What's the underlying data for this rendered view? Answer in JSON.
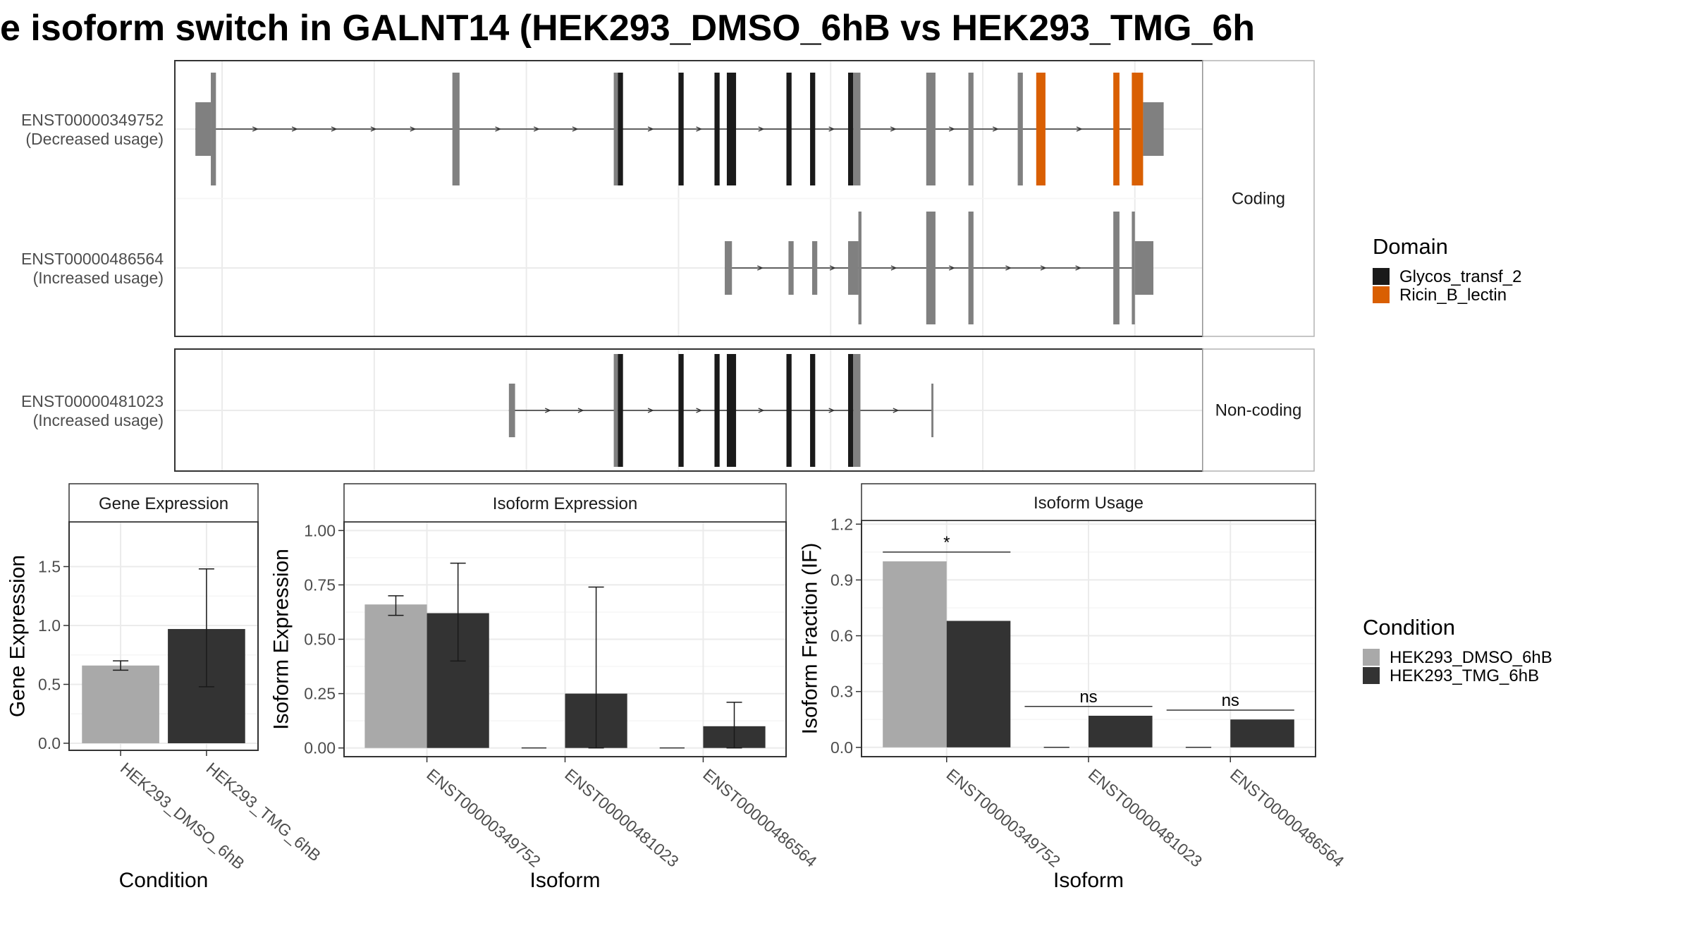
{
  "title": "e isoform switch in GALNT14 (HEK293_DMSO_6hB vs HEK293_TMG_6h",
  "colors": {
    "exon_default": "#808080",
    "glycos": "#1a1a1a",
    "ricin": "#d95f02",
    "dmso": "#a9a9a9",
    "tmg": "#333333",
    "panel_border": "#333333",
    "strip_border": "#b3b3b3",
    "grid_major": "#ebebeb",
    "grid_minor": "#f5f5f5"
  },
  "structure": {
    "facets": [
      {
        "label": "Coding",
        "isoforms": [
          {
            "id": "ENST00000349752",
            "usage": "(Decreased usage)",
            "span": [
              0.02,
              0.93
            ],
            "exons": [
              {
                "s": 0.02,
                "e": 0.035,
                "c": false,
                "d": null
              },
              {
                "s": 0.035,
                "e": 0.04,
                "c": true,
                "d": null
              },
              {
                "s": 0.27,
                "e": 0.277,
                "c": true,
                "d": null
              },
              {
                "s": 0.427,
                "e": 0.431,
                "c": true,
                "d": null
              },
              {
                "s": 0.431,
                "e": 0.436,
                "c": true,
                "d": "glycos"
              },
              {
                "s": 0.49,
                "e": 0.495,
                "c": true,
                "d": "glycos"
              },
              {
                "s": 0.525,
                "e": 0.53,
                "c": true,
                "d": "glycos"
              },
              {
                "s": 0.537,
                "e": 0.546,
                "c": true,
                "d": "glycos"
              },
              {
                "s": 0.595,
                "e": 0.6,
                "c": true,
                "d": "glycos"
              },
              {
                "s": 0.618,
                "e": 0.623,
                "c": true,
                "d": "glycos"
              },
              {
                "s": 0.655,
                "e": 0.66,
                "c": true,
                "d": "glycos"
              },
              {
                "s": 0.66,
                "e": 0.667,
                "c": true,
                "d": null
              },
              {
                "s": 0.731,
                "e": 0.74,
                "c": true,
                "d": null
              },
              {
                "s": 0.772,
                "e": 0.777,
                "c": true,
                "d": null
              },
              {
                "s": 0.82,
                "e": 0.825,
                "c": true,
                "d": null
              },
              {
                "s": 0.838,
                "e": 0.847,
                "c": true,
                "d": "ricin"
              },
              {
                "s": 0.913,
                "e": 0.919,
                "c": true,
                "d": "ricin"
              },
              {
                "s": 0.931,
                "e": 0.942,
                "c": true,
                "d": "ricin"
              },
              {
                "s": 0.942,
                "e": 0.962,
                "c": false,
                "d": null
              }
            ]
          },
          {
            "id": "ENST00000486564",
            "usage": "(Increased usage)",
            "span": [
              0.535,
              0.933
            ],
            "exons": [
              {
                "s": 0.535,
                "e": 0.542,
                "c": false,
                "d": null
              },
              {
                "s": 0.597,
                "e": 0.602,
                "c": false,
                "d": null
              },
              {
                "s": 0.62,
                "e": 0.625,
                "c": false,
                "d": null
              },
              {
                "s": 0.655,
                "e": 0.665,
                "c": false,
                "d": null
              },
              {
                "s": 0.665,
                "e": 0.668,
                "c": true,
                "d": null
              },
              {
                "s": 0.731,
                "e": 0.74,
                "c": true,
                "d": null
              },
              {
                "s": 0.772,
                "e": 0.777,
                "c": true,
                "d": null
              },
              {
                "s": 0.913,
                "e": 0.919,
                "c": true,
                "d": null
              },
              {
                "s": 0.931,
                "e": 0.934,
                "c": true,
                "d": null
              },
              {
                "s": 0.934,
                "e": 0.952,
                "c": false,
                "d": null
              }
            ]
          }
        ]
      },
      {
        "label": "Non-coding",
        "isoforms": [
          {
            "id": "ENST00000481023",
            "usage": "(Increased usage)",
            "span": [
              0.325,
              0.738
            ],
            "exons": [
              {
                "s": 0.325,
                "e": 0.331,
                "c": false,
                "d": null
              },
              {
                "s": 0.427,
                "e": 0.431,
                "c": true,
                "d": null
              },
              {
                "s": 0.431,
                "e": 0.436,
                "c": true,
                "d": "glycos"
              },
              {
                "s": 0.49,
                "e": 0.495,
                "c": true,
                "d": "glycos"
              },
              {
                "s": 0.525,
                "e": 0.53,
                "c": true,
                "d": "glycos"
              },
              {
                "s": 0.537,
                "e": 0.546,
                "c": true,
                "d": "glycos"
              },
              {
                "s": 0.595,
                "e": 0.6,
                "c": true,
                "d": "glycos"
              },
              {
                "s": 0.618,
                "e": 0.623,
                "c": true,
                "d": "glycos"
              },
              {
                "s": 0.655,
                "e": 0.66,
                "c": true,
                "d": "glycos"
              },
              {
                "s": 0.66,
                "e": 0.667,
                "c": true,
                "d": null
              },
              {
                "s": 0.736,
                "e": 0.738,
                "c": false,
                "d": null
              }
            ]
          }
        ]
      }
    ]
  },
  "legends": {
    "domain": {
      "title": "Domain",
      "items": [
        {
          "key": "glycos",
          "label": "Glycos_transf_2"
        },
        {
          "key": "ricin",
          "label": "Ricin_B_lectin"
        }
      ]
    },
    "condition": {
      "title": "Condition",
      "items": [
        {
          "key": "dmso",
          "label": "HEK293_DMSO_6hB"
        },
        {
          "key": "tmg",
          "label": "HEK293_TMG_6hB"
        }
      ]
    }
  },
  "chart_data": [
    {
      "type": "bar",
      "title": "Gene Expression",
      "xlabel": "Condition",
      "ylabel": "Gene Expression",
      "ylim": [
        -0.06,
        1.88
      ],
      "yticks": [
        0.0,
        0.5,
        1.0,
        1.5
      ],
      "yticklabels": [
        "0.0",
        "0.5",
        "1.0",
        "1.5"
      ],
      "categories": [
        "HEK293_DMSO_6hB",
        "HEK293_TMG_6hB"
      ],
      "series": [
        {
          "name": "HEK293_DMSO_6hB",
          "values": [
            0.66,
            null
          ],
          "err_low": [
            0.62,
            null
          ],
          "err_high": [
            0.7,
            null
          ]
        },
        {
          "name": "HEK293_TMG_6hB",
          "values": [
            null,
            0.97
          ],
          "err_low": [
            null,
            0.48
          ],
          "err_high": [
            null,
            1.48
          ]
        }
      ]
    },
    {
      "type": "bar",
      "title": "Isoform Expression",
      "xlabel": "Isoform",
      "ylabel": "Isoform Expression",
      "ylim": [
        -0.04,
        1.04
      ],
      "yticks": [
        0.0,
        0.25,
        0.5,
        0.75,
        1.0
      ],
      "yticklabels": [
        "0.00",
        "0.25",
        "0.50",
        "0.75",
        "1.00"
      ],
      "categories": [
        "ENST00000349752",
        "ENST00000481023",
        "ENST00000486564"
      ],
      "series": [
        {
          "name": "HEK293_DMSO_6hB",
          "values": [
            0.66,
            0.0,
            0.0
          ],
          "err_low": [
            0.61,
            0.0,
            0.0
          ],
          "err_high": [
            0.7,
            0.0,
            0.0
          ]
        },
        {
          "name": "HEK293_TMG_6hB",
          "values": [
            0.62,
            0.25,
            0.1
          ],
          "err_low": [
            0.4,
            0.0,
            0.0
          ],
          "err_high": [
            0.85,
            0.74,
            0.21
          ]
        }
      ]
    },
    {
      "type": "bar",
      "title": "Isoform Usage",
      "xlabel": "Isoform",
      "ylabel": "Isoform Fraction (IF)",
      "ylim": [
        -0.05,
        1.22
      ],
      "yticks": [
        0.0,
        0.3,
        0.6,
        0.9,
        1.2
      ],
      "yticklabels": [
        "0.0",
        "0.3",
        "0.6",
        "0.9",
        "1.2"
      ],
      "categories": [
        "ENST00000349752",
        "ENST00000481023",
        "ENST00000486564"
      ],
      "series": [
        {
          "name": "HEK293_DMSO_6hB",
          "values": [
            1.0,
            0.0,
            0.0
          ]
        },
        {
          "name": "HEK293_TMG_6hB",
          "values": [
            0.68,
            0.17,
            0.15
          ]
        }
      ],
      "annotations": [
        {
          "category": "ENST00000349752",
          "y": 1.05,
          "label": "*"
        },
        {
          "category": "ENST00000481023",
          "y": 0.22,
          "label": "ns"
        },
        {
          "category": "ENST00000486564",
          "y": 0.2,
          "label": "ns"
        }
      ]
    }
  ]
}
